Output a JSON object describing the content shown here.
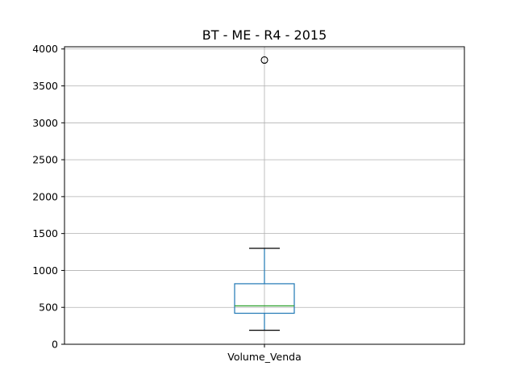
{
  "chart_data": {
    "type": "box",
    "title": "BT - ME - R4 - 2015",
    "xlabel": "",
    "ylabel": "",
    "ylim": [
      0,
      4030
    ],
    "yticks": [
      0,
      500,
      1000,
      1500,
      2000,
      2500,
      3000,
      3500,
      4000
    ],
    "grid": true,
    "categories": [
      "Volume_Venda"
    ],
    "boxes": [
      {
        "name": "Volume_Venda",
        "whisker_low": 190,
        "q1": 420,
        "median": 520,
        "q3": 820,
        "whisker_high": 1300,
        "outliers": [
          3850
        ]
      }
    ],
    "colors": {
      "box": "#1f77b4",
      "median": "#2ca02c",
      "whisker_cap": "#000000",
      "outlier": "#000000",
      "grid": "#b0b0b0"
    }
  }
}
